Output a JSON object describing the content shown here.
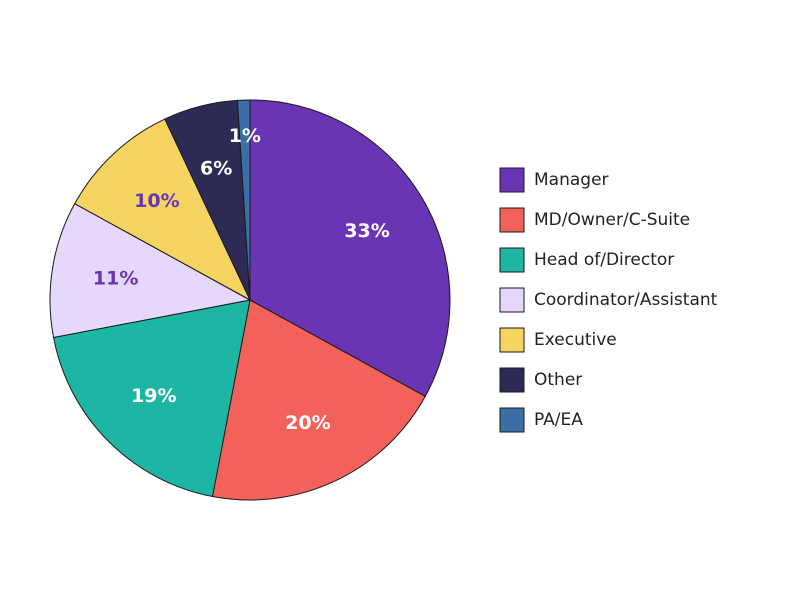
{
  "chart_data": {
    "type": "pie",
    "categories": [
      "Manager",
      "MD/Owner/C-Suite",
      "Head of/Director",
      "Coordinator/Assistant",
      "Executive",
      "Other",
      "PA/EA"
    ],
    "values": [
      33,
      20,
      19,
      11,
      10,
      6,
      1
    ],
    "labels": [
      "33%",
      "20%",
      "19%",
      "11%",
      "10%",
      "6%",
      "1%"
    ],
    "colors": [
      "#6a35b5",
      "#f2625a",
      "#1db5a3",
      "#e6d8fd",
      "#f5d462",
      "#2d2a56",
      "#3a6ea5"
    ],
    "label_colors": [
      "#ffffff",
      "#ffffff",
      "#ffffff",
      "#6a35b5",
      "#6a35b5",
      "#ffffff",
      "#ffffff"
    ],
    "start": "top",
    "direction": "clockwise",
    "legend_position": "right"
  }
}
